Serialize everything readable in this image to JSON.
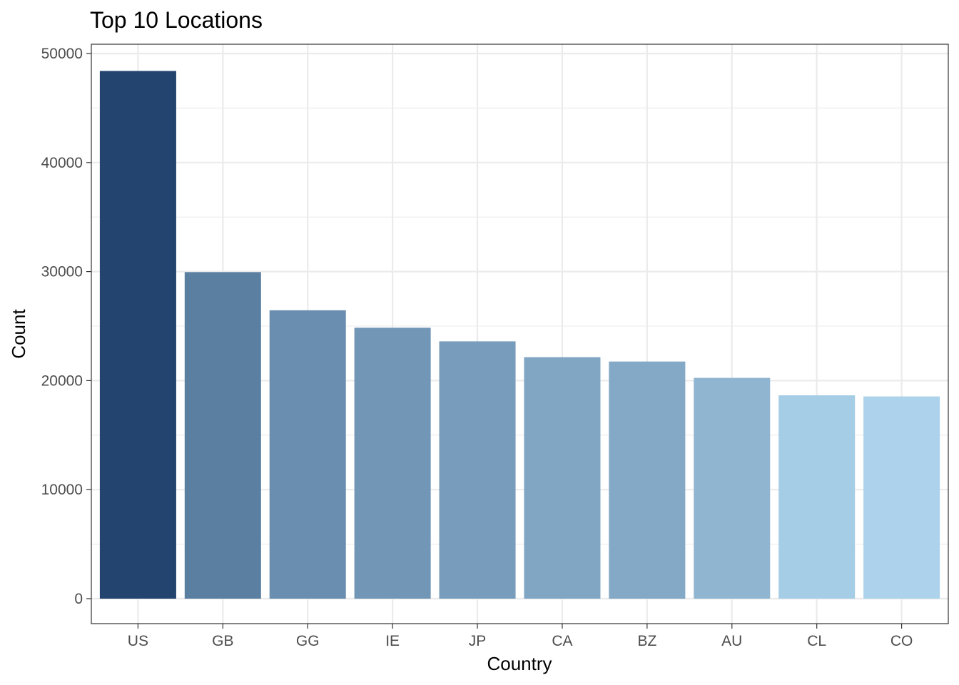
{
  "chart_data": {
    "type": "bar",
    "title": "Top 10 Locations",
    "xlabel": "Country",
    "ylabel": "Count",
    "categories": [
      "US",
      "GB",
      "GG",
      "IE",
      "JP",
      "CA",
      "BZ",
      "AU",
      "CL",
      "CO"
    ],
    "values": [
      48400,
      29950,
      26450,
      24850,
      23600,
      22150,
      21750,
      20250,
      18650,
      18550
    ],
    "ylim": [
      0,
      50000
    ],
    "y_ticks": [
      "0",
      "10000",
      "20000",
      "30000",
      "40000",
      "50000"
    ],
    "grid": true,
    "legend": "none",
    "colors": {
      "high": "#23446e",
      "low": "#acd3eb",
      "grid": "#ebebeb",
      "panel_border": "#333333"
    }
  }
}
